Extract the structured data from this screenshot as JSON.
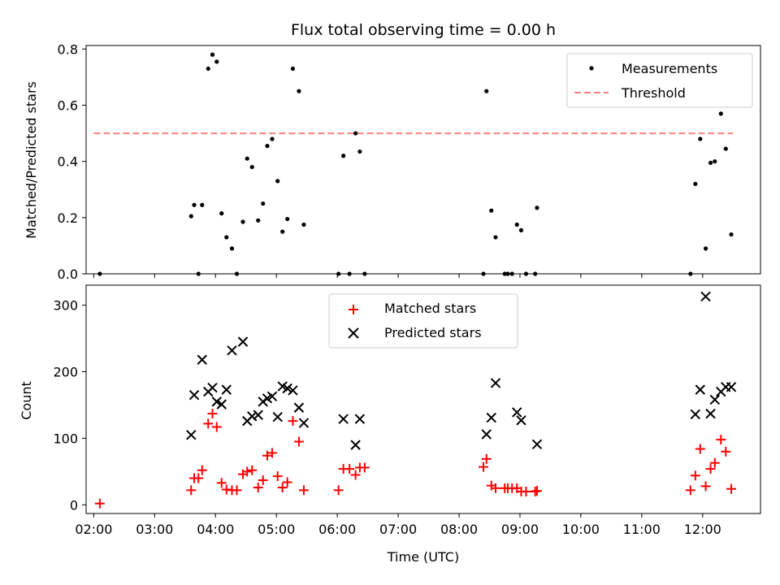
{
  "chart_data": [
    {
      "type": "scatter",
      "title": "Flux total observing time = 0.00 h",
      "xlabel": "",
      "ylabel": "Matched/Predicted stars",
      "xlim": [
        1.875,
        12.95
      ],
      "ylim": [
        0,
        0.8125
      ],
      "yticks": [
        0.0,
        0.2,
        0.4,
        0.6,
        0.8
      ],
      "ytick_labels": [
        "0.0",
        "0.2",
        "0.4",
        "0.6",
        "0.8"
      ],
      "legend_position": "top-right",
      "legend": [
        "Measurements",
        "Threshold"
      ],
      "threshold": {
        "name": "Threshold",
        "value": 0.5,
        "x_range": [
          2.0,
          12.5
        ],
        "color": "#ff7f7f"
      },
      "series": [
        {
          "name": "Measurements",
          "color": "#000000",
          "points": [
            [
              2.1,
              0.0
            ],
            [
              3.6,
              0.205
            ],
            [
              3.65,
              0.245
            ],
            [
              3.72,
              0.0
            ],
            [
              3.78,
              0.245
            ],
            [
              3.88,
              0.73
            ],
            [
              3.95,
              0.78
            ],
            [
              4.02,
              0.755
            ],
            [
              4.1,
              0.215
            ],
            [
              4.18,
              0.13
            ],
            [
              4.27,
              0.09
            ],
            [
              4.35,
              0.0
            ],
            [
              4.45,
              0.185
            ],
            [
              4.52,
              0.41
            ],
            [
              4.6,
              0.38
            ],
            [
              4.7,
              0.19
            ],
            [
              4.78,
              0.25
            ],
            [
              4.85,
              0.455
            ],
            [
              4.93,
              0.48
            ],
            [
              5.02,
              0.33
            ],
            [
              5.1,
              0.15
            ],
            [
              5.18,
              0.195
            ],
            [
              5.27,
              0.73
            ],
            [
              5.37,
              0.65
            ],
            [
              5.45,
              0.175
            ],
            [
              6.02,
              0.0
            ],
            [
              6.1,
              0.42
            ],
            [
              6.2,
              0.0
            ],
            [
              6.3,
              0.5
            ],
            [
              6.37,
              0.435
            ],
            [
              6.45,
              0.0
            ],
            [
              8.4,
              0.0
            ],
            [
              8.45,
              0.65
            ],
            [
              8.53,
              0.225
            ],
            [
              8.6,
              0.13
            ],
            [
              8.75,
              0.0
            ],
            [
              8.8,
              0.0
            ],
            [
              8.87,
              0.0
            ],
            [
              8.95,
              0.175
            ],
            [
              9.02,
              0.155
            ],
            [
              9.1,
              0.0
            ],
            [
              9.25,
              0.0
            ],
            [
              9.28,
              0.235
            ],
            [
              11.8,
              0.0
            ],
            [
              11.88,
              0.32
            ],
            [
              11.96,
              0.48
            ],
            [
              12.05,
              0.09
            ],
            [
              12.13,
              0.395
            ],
            [
              12.2,
              0.4
            ],
            [
              12.3,
              0.57
            ],
            [
              12.38,
              0.445
            ],
            [
              12.47,
              0.14
            ]
          ]
        }
      ]
    },
    {
      "type": "scatter",
      "title": "",
      "xlabel": "Time (UTC)",
      "ylabel": "Count",
      "xlim": [
        1.875,
        12.95
      ],
      "ylim": [
        -13,
        330
      ],
      "yticks": [
        0,
        100,
        200,
        300
      ],
      "ytick_labels": [
        "0",
        "100",
        "200",
        "300"
      ],
      "xticks": [
        2,
        3,
        4,
        5,
        6,
        7,
        8,
        9,
        10,
        11,
        12
      ],
      "xtick_labels": [
        "02:00",
        "03:00",
        "04:00",
        "05:00",
        "06:00",
        "07:00",
        "08:00",
        "09:00",
        "10:00",
        "11:00",
        "12:00"
      ],
      "legend_position": "upper center",
      "legend": [
        "Matched stars",
        "Predicted stars"
      ],
      "series": [
        {
          "name": "Matched stars",
          "marker": "+",
          "color": "#ff0000",
          "points": [
            [
              2.1,
              2
            ],
            [
              3.6,
              22
            ],
            [
              3.65,
              40
            ],
            [
              3.72,
              40
            ],
            [
              3.78,
              52
            ],
            [
              3.88,
              122
            ],
            [
              3.95,
              137
            ],
            [
              4.02,
              117
            ],
            [
              4.1,
              33
            ],
            [
              4.18,
              23
            ],
            [
              4.27,
              22
            ],
            [
              4.35,
              22
            ],
            [
              4.45,
              46
            ],
            [
              4.52,
              50
            ],
            [
              4.6,
              52
            ],
            [
              4.7,
              26
            ],
            [
              4.78,
              37
            ],
            [
              4.85,
              74
            ],
            [
              4.93,
              78
            ],
            [
              5.02,
              43
            ],
            [
              5.1,
              26
            ],
            [
              5.18,
              34
            ],
            [
              5.27,
              126
            ],
            [
              5.37,
              95
            ],
            [
              5.45,
              22
            ],
            [
              6.02,
              22
            ],
            [
              6.1,
              54
            ],
            [
              6.2,
              54
            ],
            [
              6.3,
              45
            ],
            [
              6.37,
              56
            ],
            [
              6.45,
              56
            ],
            [
              8.4,
              57
            ],
            [
              8.45,
              69
            ],
            [
              8.53,
              29
            ],
            [
              8.6,
              25
            ],
            [
              8.75,
              25
            ],
            [
              8.8,
              25
            ],
            [
              8.87,
              25
            ],
            [
              8.95,
              25
            ],
            [
              9.02,
              20
            ],
            [
              9.1,
              20
            ],
            [
              9.25,
              20
            ],
            [
              9.28,
              21
            ],
            [
              11.8,
              22
            ],
            [
              11.88,
              44
            ],
            [
              11.96,
              84
            ],
            [
              12.05,
              28
            ],
            [
              12.13,
              54
            ],
            [
              12.2,
              63
            ],
            [
              12.3,
              98
            ],
            [
              12.38,
              80
            ],
            [
              12.47,
              24
            ]
          ]
        },
        {
          "name": "Predicted stars",
          "marker": "x",
          "color": "#000000",
          "points": [
            [
              3.6,
              105
            ],
            [
              3.65,
              165
            ],
            [
              3.78,
              218
            ],
            [
              3.88,
              170
            ],
            [
              3.95,
              176
            ],
            [
              4.02,
              155
            ],
            [
              4.1,
              151
            ],
            [
              4.18,
              173
            ],
            [
              4.27,
              232
            ],
            [
              4.45,
              245
            ],
            [
              4.52,
              126
            ],
            [
              4.6,
              133
            ],
            [
              4.7,
              135
            ],
            [
              4.78,
              155
            ],
            [
              4.85,
              160
            ],
            [
              4.93,
              163
            ],
            [
              5.02,
              132
            ],
            [
              5.1,
              178
            ],
            [
              5.18,
              175
            ],
            [
              5.27,
              172
            ],
            [
              5.37,
              146
            ],
            [
              5.45,
              123
            ],
            [
              6.1,
              129
            ],
            [
              6.3,
              90
            ],
            [
              6.37,
              129
            ],
            [
              8.45,
              106
            ],
            [
              8.53,
              131
            ],
            [
              8.6,
              183
            ],
            [
              8.95,
              139
            ],
            [
              9.02,
              127
            ],
            [
              9.28,
              91
            ],
            [
              11.88,
              136
            ],
            [
              11.96,
              173
            ],
            [
              12.05,
              313
            ],
            [
              12.13,
              137
            ],
            [
              12.2,
              158
            ],
            [
              12.3,
              170
            ],
            [
              12.38,
              177
            ],
            [
              12.47,
              177
            ]
          ]
        }
      ]
    }
  ]
}
